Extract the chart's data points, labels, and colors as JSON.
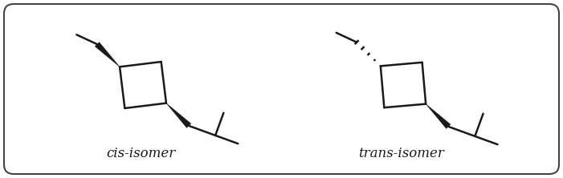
{
  "background_color": "#ffffff",
  "border_color": "#444444",
  "cis_label": "cis-isomer",
  "trans_label": "trans-isomer",
  "label_fontsize": 12,
  "line_color": "#1a1a1a",
  "line_width": 1.8
}
